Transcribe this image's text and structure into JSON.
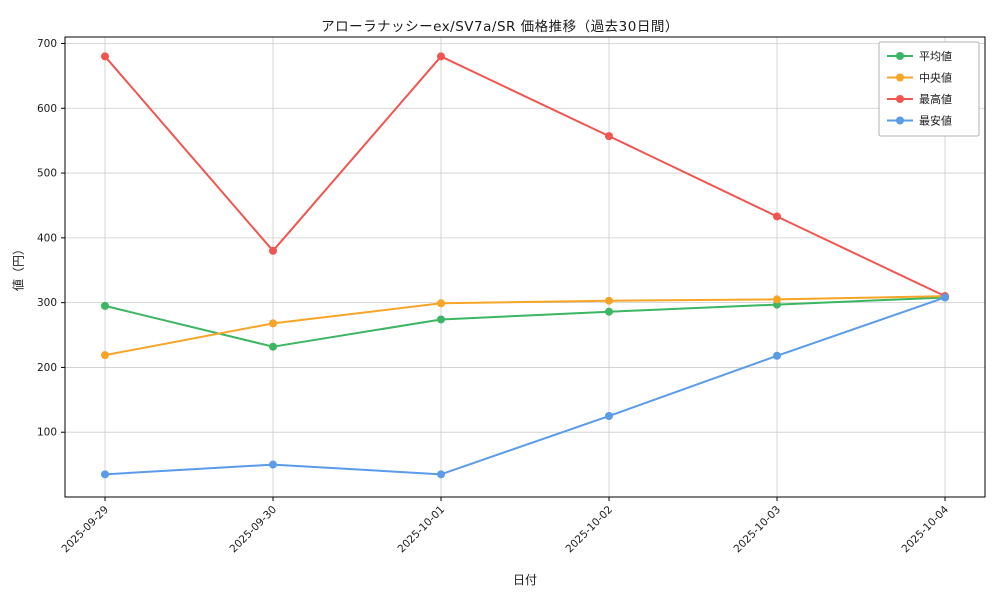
{
  "chart_data": {
    "type": "line",
    "title": "アローラナッシーex/SV7a/SR 価格推移（過去30日間）",
    "xlabel": "日付",
    "ylabel": "値（円）",
    "x": [
      "2025-09-29",
      "2025-09-30",
      "2025-10-01",
      "2025-10-02",
      "2025-10-03",
      "2025-10-04"
    ],
    "series": [
      {
        "name": "平均値",
        "color": "#3bb662",
        "values": [
          295,
          232,
          274,
          286,
          297,
          308
        ]
      },
      {
        "name": "中央値",
        "color": "#f7a427",
        "values": [
          219,
          268,
          299,
          303,
          305,
          310
        ]
      },
      {
        "name": "最高値",
        "color": "#f25550",
        "values": [
          680,
          380,
          680,
          557,
          433,
          310
        ]
      },
      {
        "name": "最安値",
        "color": "#5a9bea",
        "values": [
          35,
          50,
          35,
          125,
          218,
          308
        ]
      }
    ],
    "ylim": [
      0,
      710
    ],
    "yticks": [
      100,
      200,
      300,
      400,
      500,
      600,
      700
    ],
    "grid": true,
    "grid_color": "#cccccc",
    "frame_color": "#000000",
    "legend_position": "top-right"
  }
}
